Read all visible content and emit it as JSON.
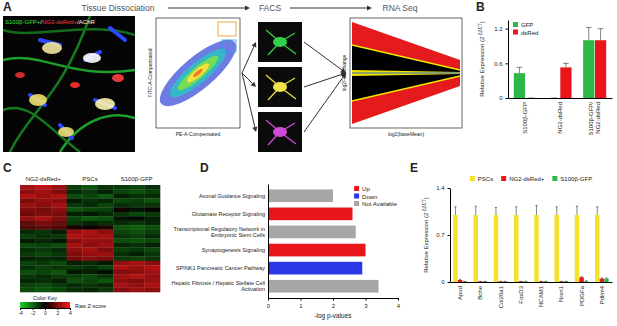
{
  "panel_a": {
    "panel": "A",
    "steps": [
      "Tissue Dissociation",
      "FACS",
      "RNA Seq"
    ],
    "image_label": [
      {
        "text": "S100β-GFP+",
        "color": "#39e639"
      },
      {
        "text": "/",
        "color": "#ffffff"
      },
      {
        "text": "NG2-dsRed+",
        "color": "#ff3b3b"
      },
      {
        "text": "/",
        "color": "#ffffff"
      },
      {
        "text": "AChR",
        "color": "#ffffff"
      }
    ],
    "facs": {
      "x_label": "PE-A-Compensated",
      "y_label": "FITC-A-Compensated"
    },
    "ma_plot": {
      "x_label": "log2(baseMean)",
      "y_label": "log2FoldChange"
    }
  },
  "chart_data": [
    {
      "panel": "B",
      "type": "bar",
      "y_label": [
        "Relative Expression (2",
        "-ΔΔCT",
        ")"
      ],
      "categories": [
        "S100β-GFP",
        "NG2-dsRed",
        "S100β-GFP/NG2-dsRed"
      ],
      "series": [
        {
          "name": "GFP",
          "color": "#2db84a",
          "values": [
            0.43,
            0,
            1
          ],
          "errors": [
            0.1,
            0,
            0.22
          ]
        },
        {
          "name": "dsRed",
          "color": "#e8151b",
          "values": [
            0,
            0.53,
            1
          ],
          "errors": [
            0,
            0.07,
            0.2
          ]
        }
      ],
      "ylim": [
        0,
        1.35
      ],
      "yticks": [
        0,
        0.6,
        1.2
      ],
      "legend": "top-left"
    },
    {
      "panel": "C",
      "type": "heatmap",
      "column_groups": [
        "NG2-dsRed+",
        "PSCs",
        "S100β-GFP"
      ],
      "colors": [
        "#1fd11f",
        "#000000",
        "#ff1a1a"
      ],
      "cells": [
        [
          2.6,
          2.9,
          2.4,
          -1.2,
          -1.6,
          -1.0,
          -1.1,
          -1.3,
          -0.9
        ],
        [
          2.2,
          2.5,
          2.0,
          -0.8,
          -1.1,
          -0.6,
          -1.3,
          -1.5,
          -1.2
        ],
        [
          2.8,
          2.4,
          2.7,
          -1.5,
          -1.3,
          -1.7,
          -0.6,
          -0.9,
          -0.8
        ],
        [
          1.9,
          2.3,
          2.1,
          -0.5,
          -0.9,
          -0.7,
          -1.4,
          -1.2,
          -1.6
        ],
        [
          2.4,
          2.1,
          2.6,
          -1.1,
          -0.8,
          -1.3,
          -0.9,
          -1.1,
          -1.0
        ],
        [
          2.0,
          1.8,
          2.2,
          -1.6,
          -1.4,
          -1.2,
          0.2,
          -0.3,
          0.1
        ],
        [
          1.7,
          2.0,
          1.9,
          -0.6,
          -0.4,
          -0.8,
          -1.0,
          -1.4,
          -1.1
        ],
        [
          2.3,
          2.6,
          2.0,
          -1.3,
          -1.7,
          -1.5,
          -0.4,
          -0.2,
          -0.6
        ],
        [
          1.5,
          1.9,
          1.6,
          -1.0,
          -0.7,
          -0.9,
          -0.8,
          -1.0,
          -0.7
        ],
        [
          1.2,
          1.5,
          1.3,
          0.3,
          0.1,
          0.5,
          -1.6,
          -1.8,
          -1.5
        ],
        [
          -0.8,
          -1.0,
          -0.6,
          2.4,
          2.7,
          2.2,
          -1.3,
          -1.5,
          -1.2
        ],
        [
          -1.2,
          -0.9,
          -1.1,
          2.8,
          2.5,
          2.6,
          -1.0,
          -1.2,
          -0.8
        ],
        [
          -0.5,
          -0.7,
          -0.4,
          2.1,
          2.4,
          2.3,
          -1.5,
          -1.6,
          -1.4
        ],
        [
          -1.4,
          -1.2,
          -1.5,
          2.6,
          2.2,
          2.5,
          -0.7,
          -0.9,
          -0.6
        ],
        [
          -0.9,
          -1.1,
          -0.8,
          2.3,
          2.6,
          2.0,
          -1.2,
          -1.1,
          -1.4
        ],
        [
          -1.1,
          -1.3,
          -1.0,
          2.0,
          2.3,
          2.4,
          -0.9,
          -0.6,
          -1.0
        ],
        [
          -0.6,
          -0.8,
          -0.7,
          1.8,
          2.1,
          1.9,
          -1.1,
          -1.3,
          -1.0
        ],
        [
          -1.3,
          -1.1,
          -1.4,
          -0.6,
          -0.8,
          -0.5,
          2.3,
          2.6,
          2.1
        ],
        [
          -0.9,
          -1.2,
          -1.0,
          -1.1,
          -0.9,
          -1.3,
          2.7,
          2.4,
          2.8
        ],
        [
          -1.5,
          -1.3,
          -1.6,
          -0.4,
          -0.6,
          -0.3,
          2.0,
          2.2,
          2.5
        ],
        [
          -1.0,
          -0.8,
          -1.1,
          -1.2,
          -1.4,
          -1.0,
          2.5,
          2.8,
          2.3
        ],
        [
          -0.7,
          -0.9,
          -0.6,
          -1.5,
          -1.3,
          -1.6,
          2.2,
          2.0,
          2.4
        ],
        [
          -1.2,
          -1.4,
          -1.1,
          -0.8,
          -1.0,
          -0.7,
          2.6,
          2.3,
          2.7
        ],
        [
          -1.4,
          -1.6,
          -1.3,
          -0.9,
          -0.7,
          -1.1,
          2.1,
          2.4,
          2.2
        ]
      ],
      "colorbar": {
        "title": "Color Key",
        "label": "Raw Z-score",
        "range": [
          -4,
          4
        ],
        "ticks": [
          -4,
          -2,
          0,
          2,
          4
        ]
      }
    },
    {
      "panel": "D",
      "type": "bar",
      "orientation": "horizontal",
      "x_label": "-log p-values",
      "categories": [
        "Axonal Guidance Signaling",
        "Glutamate Receptor Signaling",
        "Transcriptional Regulatory Network in Embryonic Stem Cells",
        "Synaptogenesis Signaling",
        "SPINK1 Pancreatic Cancer Pathway",
        "Hepatic Fibrosis / Hepatic Stellate Cell Activation"
      ],
      "series": [
        {
          "name": "Up",
          "color": "#e8151b",
          "values": [
            null,
            2.6,
            null,
            3.0,
            null,
            null
          ]
        },
        {
          "name": "Down",
          "color": "#2a37e6",
          "values": [
            null,
            null,
            null,
            null,
            2.9,
            null
          ]
        },
        {
          "name": "Not Available",
          "color": "#a6a6a6",
          "values": [
            2.0,
            null,
            2.7,
            null,
            null,
            3.4
          ]
        }
      ],
      "xlim": [
        0,
        4
      ],
      "xticks": [
        0,
        1,
        2,
        3,
        4
      ],
      "legend": "top-right"
    },
    {
      "panel": "E",
      "type": "bar",
      "y_label": [
        "Relative Expression (2",
        "-ΔΔCT",
        ")"
      ],
      "categories": [
        "Apod",
        "Bche",
        "Col20a1",
        "FoxD3",
        "NCAM1",
        "Nrxn1",
        "PDGFa",
        "Pdlim4"
      ],
      "series": [
        {
          "name": "PSCs",
          "color": "#f5e12a",
          "values": [
            1,
            1,
            1,
            1,
            1,
            1,
            1,
            1
          ],
          "errors": [
            0.12,
            0.13,
            0.11,
            0.12,
            0.14,
            0.12,
            0.13,
            0.12
          ]
        },
        {
          "name": "NG2-dsRed+",
          "color": "#e8151b",
          "values": [
            0.03,
            0.01,
            0.01,
            0.01,
            0.01,
            0.01,
            0.07,
            0.05
          ],
          "errors": [
            0.01,
            0,
            0,
            0,
            0,
            0,
            0.01,
            0.01
          ]
        },
        {
          "name": "S100β-GFP",
          "color": "#2db84a",
          "values": [
            0.01,
            0.01,
            0.01,
            0.01,
            0.01,
            0.01,
            0.01,
            0.05
          ],
          "errors": [
            0,
            0,
            0,
            0,
            0,
            0,
            0.01,
            0.01
          ]
        }
      ],
      "ylim": [
        0,
        1.4
      ],
      "yticks": [
        0,
        0.7,
        1.4
      ],
      "legend": "top"
    }
  ]
}
